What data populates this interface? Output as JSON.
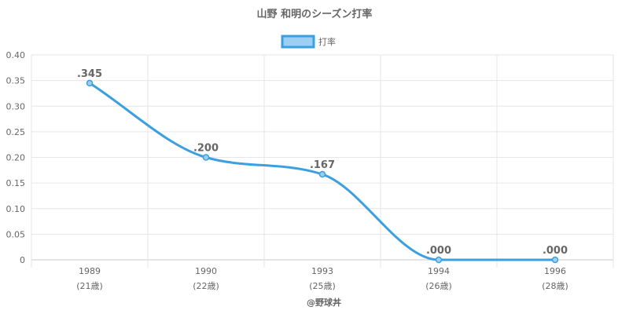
{
  "chart_data": {
    "type": "line",
    "title": "山野 和明のシーズン打率",
    "categories": [
      "1989",
      "1990",
      "1993",
      "1994",
      "1996"
    ],
    "category_sublabels": [
      "(21歳)",
      "(22歳)",
      "(25歳)",
      "(26歳)",
      "(28歳)"
    ],
    "series": [
      {
        "name": "打率",
        "values": [
          0.345,
          0.2,
          0.167,
          0.0,
          0.0
        ],
        "data_labels": [
          ".345",
          ".200",
          ".167",
          ".000",
          ".000"
        ],
        "color": "#3b9fe0",
        "fill": "#9ccff3"
      }
    ],
    "ylim": [
      0,
      0.4
    ],
    "yticks": [
      0,
      0.05,
      0.1,
      0.15,
      0.2,
      0.25,
      0.3,
      0.35,
      0.4
    ],
    "ytick_labels": [
      "0",
      "0.05",
      "0.10",
      "0.15",
      "0.20",
      "0.25",
      "0.30",
      "0.35",
      "0.40"
    ],
    "xlabel": "",
    "ylabel": "",
    "legend_position": "top-center",
    "grid": true,
    "credit": "@野球丼",
    "colors": {
      "grid": "#e6e6e6",
      "axis": "#c8c8c8",
      "text": "#666666"
    }
  }
}
